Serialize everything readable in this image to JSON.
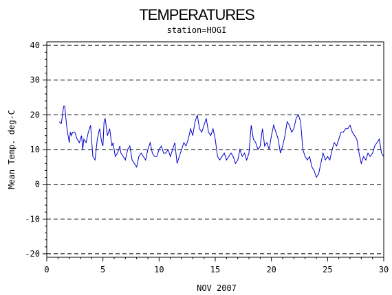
{
  "chart_data": {
    "type": "line",
    "title": "TEMPERATURES",
    "subtitle": "station=HOGI",
    "xlabel": "NOV 2007",
    "ylabel": "Mean Temp. deg-C",
    "xlim": [
      0,
      30
    ],
    "ylim": [
      -21,
      41
    ],
    "xticks": [
      0,
      5,
      10,
      15,
      20,
      25,
      30
    ],
    "yticks": [
      -20,
      -10,
      0,
      10,
      20,
      30,
      40
    ],
    "grid": "horizontal dashed",
    "line_color": "#0000cc",
    "series": [
      {
        "x": [
          1.1,
          1.3,
          1.4,
          1.5,
          1.6,
          1.7,
          1.8,
          1.9,
          2.0,
          2.1,
          2.2,
          2.3,
          2.5,
          2.7,
          2.9,
          3.1,
          3.2,
          3.3,
          3.5,
          3.7,
          3.9,
          4.1,
          4.3,
          4.5,
          4.7,
          4.9,
          5.0,
          5.1,
          5.2,
          5.4,
          5.6,
          5.8,
          5.9,
          6.1,
          6.3,
          6.5,
          6.6,
          6.8,
          7.0,
          7.2,
          7.4,
          7.6,
          7.8,
          8.0,
          8.2,
          8.4,
          8.6,
          8.8,
          9.0,
          9.2,
          9.4,
          9.6,
          9.8,
          10.0,
          10.2,
          10.4,
          10.6,
          10.8,
          11.0,
          11.2,
          11.4,
          11.6,
          11.8,
          12.0,
          12.2,
          12.4,
          12.6,
          12.8,
          13.0,
          13.2,
          13.4,
          13.6,
          13.8,
          14.0,
          14.2,
          14.4,
          14.6,
          14.8,
          15.0,
          15.2,
          15.4,
          15.6,
          15.8,
          16.0,
          16.2,
          16.4,
          16.6,
          16.8,
          17.0,
          17.2,
          17.4,
          17.6,
          17.8,
          18.0,
          18.2,
          18.4,
          18.6,
          18.8,
          19.0,
          19.2,
          19.4,
          19.6,
          19.8,
          20.0,
          20.2,
          20.4,
          20.6,
          20.8,
          21.0,
          21.2,
          21.4,
          21.6,
          21.8,
          22.0,
          22.2,
          22.4,
          22.6,
          22.8,
          23.0,
          23.2,
          23.4,
          23.6,
          23.8,
          24.0,
          24.2,
          24.4,
          24.6,
          24.8,
          25.0,
          25.2,
          25.4,
          25.6,
          25.8,
          26.0,
          26.2,
          26.4,
          26.6,
          26.8,
          27.0,
          27.2,
          27.4,
          27.6,
          27.8,
          28.0,
          28.2,
          28.4,
          28.6,
          28.8,
          29.0,
          29.2,
          29.4,
          29.6,
          29.8,
          30.0
        ],
        "values": [
          18,
          17.5,
          20,
          22.5,
          22.5,
          19,
          16,
          14,
          12,
          15,
          14,
          15,
          15,
          13,
          12,
          14,
          10,
          13,
          12,
          15,
          17,
          8,
          7,
          13,
          16,
          12,
          11,
          18,
          19,
          14,
          16,
          11,
          12,
          8,
          9,
          11,
          9,
          8,
          7,
          10,
          11,
          7,
          6,
          5,
          8,
          9,
          8,
          7,
          10,
          12,
          9,
          8,
          8,
          10,
          11,
          9,
          9,
          10,
          8,
          10,
          12,
          6,
          8,
          10,
          12,
          11,
          13,
          16,
          14,
          18,
          20,
          16,
          15,
          17,
          19,
          15,
          14,
          16,
          13,
          8,
          7,
          8,
          9,
          7,
          8,
          9,
          8,
          6,
          7,
          10,
          8,
          9,
          7,
          9,
          17,
          13,
          12,
          10,
          11,
          16,
          11,
          12,
          10,
          14,
          17,
          15,
          13,
          9,
          11,
          14,
          18,
          17,
          15,
          16,
          19,
          20,
          18,
          10,
          8,
          7,
          8,
          5,
          4,
          2,
          3,
          6,
          9,
          7,
          8,
          7,
          10,
          12,
          11,
          13,
          15,
          15,
          16,
          16,
          17,
          15,
          14,
          13,
          9,
          6,
          8,
          7,
          9,
          8,
          9,
          11,
          12,
          13,
          9,
          8
        ]
      }
    ]
  }
}
